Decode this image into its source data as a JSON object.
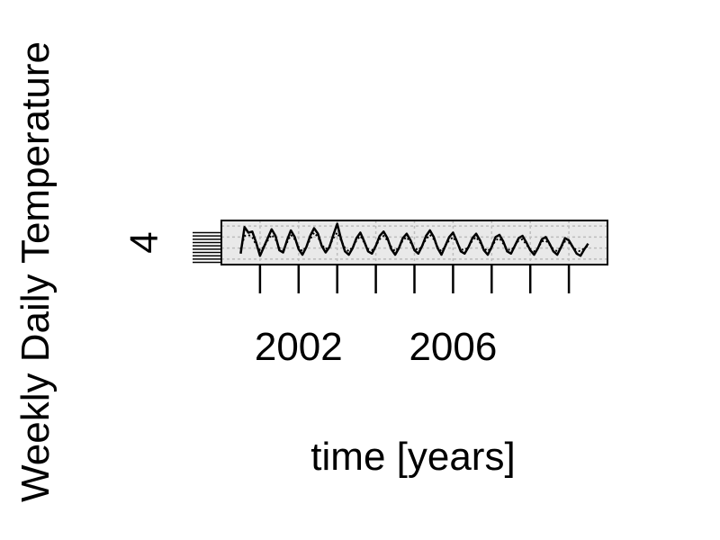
{
  "chart_data": {
    "type": "line",
    "xlabel": "time [years]",
    "ylabel": "Weekly Daily Temperature",
    "x_tick_labels": [
      "2002",
      "2006"
    ],
    "y_tick_labels": [
      "4"
    ],
    "xlim": [
      2000,
      2010
    ],
    "ylim": [
      2,
      6
    ],
    "x_tick_years": [
      2001,
      2002,
      2003,
      2004,
      2005,
      2006,
      2007,
      2008,
      2009
    ],
    "x_tick_label_years": [
      2002,
      2006
    ],
    "y_tick_label_value": 4,
    "y_minor_ticks": [
      2.2,
      2.5,
      2.8,
      3.1,
      3.4,
      3.7,
      4.0,
      4.3,
      4.6,
      4.9
    ],
    "grid": true,
    "series": [
      {
        "style": "solid",
        "color": "#000000",
        "x": [
          2000.5,
          2000.6,
          2000.7,
          2000.8,
          2000.9,
          2001.0,
          2001.1,
          2001.2,
          2001.3,
          2001.4,
          2001.5,
          2001.6,
          2001.7,
          2001.8,
          2001.9,
          2002.0,
          2002.1,
          2002.2,
          2002.3,
          2002.4,
          2002.5,
          2002.6,
          2002.7,
          2002.8,
          2002.9,
          2003.0,
          2003.1,
          2003.2,
          2003.3,
          2003.4,
          2003.5,
          2003.6,
          2003.7,
          2003.8,
          2003.9,
          2004.0,
          2004.1,
          2004.2,
          2004.3,
          2004.4,
          2004.5,
          2004.6,
          2004.7,
          2004.8,
          2004.9,
          2005.0,
          2005.1,
          2005.2,
          2005.3,
          2005.4,
          2005.5,
          2005.6,
          2005.7,
          2005.8,
          2005.9,
          2006.0,
          2006.1,
          2006.2,
          2006.3,
          2006.4,
          2006.5,
          2006.6,
          2006.7,
          2006.8,
          2006.9,
          2007.0,
          2007.1,
          2007.2,
          2007.3,
          2007.4,
          2007.5,
          2007.6,
          2007.7,
          2007.8,
          2007.9,
          2008.0,
          2008.1,
          2008.2,
          2008.3,
          2008.4,
          2008.5,
          2008.6,
          2008.7,
          2008.8,
          2008.9,
          2009.0,
          2009.1,
          2009.2,
          2009.3,
          2009.4,
          2009.5
        ],
        "values": [
          3.0,
          5.4,
          4.9,
          5.0,
          4.0,
          2.8,
          3.6,
          4.4,
          5.2,
          4.6,
          3.3,
          3.1,
          4.2,
          5.1,
          4.5,
          3.4,
          2.9,
          3.6,
          4.6,
          5.3,
          4.8,
          3.7,
          3.1,
          3.6,
          4.7,
          5.7,
          4.3,
          3.2,
          2.9,
          3.5,
          4.4,
          4.9,
          4.1,
          3.2,
          3.0,
          3.7,
          4.6,
          5.0,
          4.4,
          3.4,
          2.9,
          3.5,
          4.4,
          4.8,
          4.2,
          3.3,
          3.0,
          3.7,
          4.6,
          5.1,
          4.5,
          3.5,
          2.9,
          3.7,
          4.5,
          4.9,
          4.1,
          3.2,
          3.0,
          3.6,
          4.4,
          4.8,
          4.2,
          3.3,
          2.9,
          3.6,
          4.5,
          4.7,
          4.1,
          3.2,
          3.0,
          3.7,
          4.4,
          4.6,
          4.0,
          3.3,
          2.9,
          3.5,
          4.3,
          4.5,
          3.9,
          3.2,
          2.9,
          3.6,
          4.4,
          4.2,
          3.6,
          3.0,
          2.8,
          3.4,
          3.9
        ]
      },
      {
        "style": "dotted",
        "color": "#000000",
        "x": [
          2000.5,
          2000.6,
          2000.7,
          2000.8,
          2000.9,
          2001.0,
          2001.1,
          2001.2,
          2001.3,
          2001.4,
          2001.5,
          2001.6,
          2001.7,
          2001.8,
          2001.9,
          2002.0,
          2002.1,
          2002.2,
          2002.3,
          2002.4,
          2002.5,
          2002.6,
          2002.7,
          2002.8,
          2002.9,
          2003.0,
          2003.1,
          2003.2,
          2003.3,
          2003.4,
          2003.5,
          2003.6,
          2003.7,
          2003.8,
          2003.9,
          2004.0,
          2004.1,
          2004.2,
          2004.3,
          2004.4,
          2004.5,
          2004.6,
          2004.7,
          2004.8,
          2004.9,
          2005.0,
          2005.1,
          2005.2,
          2005.3,
          2005.4,
          2005.5,
          2005.6,
          2005.7,
          2005.8,
          2005.9,
          2006.0,
          2006.1,
          2006.2,
          2006.3,
          2006.4,
          2006.5,
          2006.6,
          2006.7,
          2006.8,
          2006.9,
          2007.0,
          2007.1,
          2007.2,
          2007.3,
          2007.4,
          2007.5,
          2007.6,
          2007.7,
          2007.8,
          2007.9,
          2008.0,
          2008.1,
          2008.2,
          2008.3,
          2008.4,
          2008.5,
          2008.6,
          2008.7,
          2008.8,
          2008.9,
          2009.0,
          2009.1,
          2009.2,
          2009.3,
          2009.4,
          2009.5
        ],
        "values": [
          3.4,
          4.6,
          4.7,
          4.5,
          3.8,
          3.3,
          3.6,
          4.2,
          4.7,
          4.3,
          3.5,
          3.3,
          4.0,
          4.7,
          4.3,
          3.6,
          3.2,
          3.6,
          4.3,
          4.9,
          4.5,
          3.8,
          3.4,
          3.7,
          4.4,
          4.9,
          4.2,
          3.5,
          3.2,
          3.6,
          4.2,
          4.6,
          4.0,
          3.4,
          3.3,
          3.7,
          4.3,
          4.6,
          4.2,
          3.6,
          3.2,
          3.6,
          4.2,
          4.5,
          4.0,
          3.5,
          3.3,
          3.7,
          4.3,
          4.7,
          4.3,
          3.6,
          3.2,
          3.7,
          4.2,
          4.5,
          4.0,
          3.4,
          3.3,
          3.6,
          4.2,
          4.5,
          4.0,
          3.5,
          3.2,
          3.6,
          4.2,
          4.4,
          3.9,
          3.4,
          3.3,
          3.7,
          4.2,
          4.3,
          3.8,
          3.4,
          3.2,
          3.5,
          4.1,
          4.2,
          3.8,
          3.4,
          3.2,
          3.6,
          4.1,
          4.0,
          3.6,
          3.3,
          3.2,
          3.5,
          3.7
        ]
      }
    ]
  }
}
